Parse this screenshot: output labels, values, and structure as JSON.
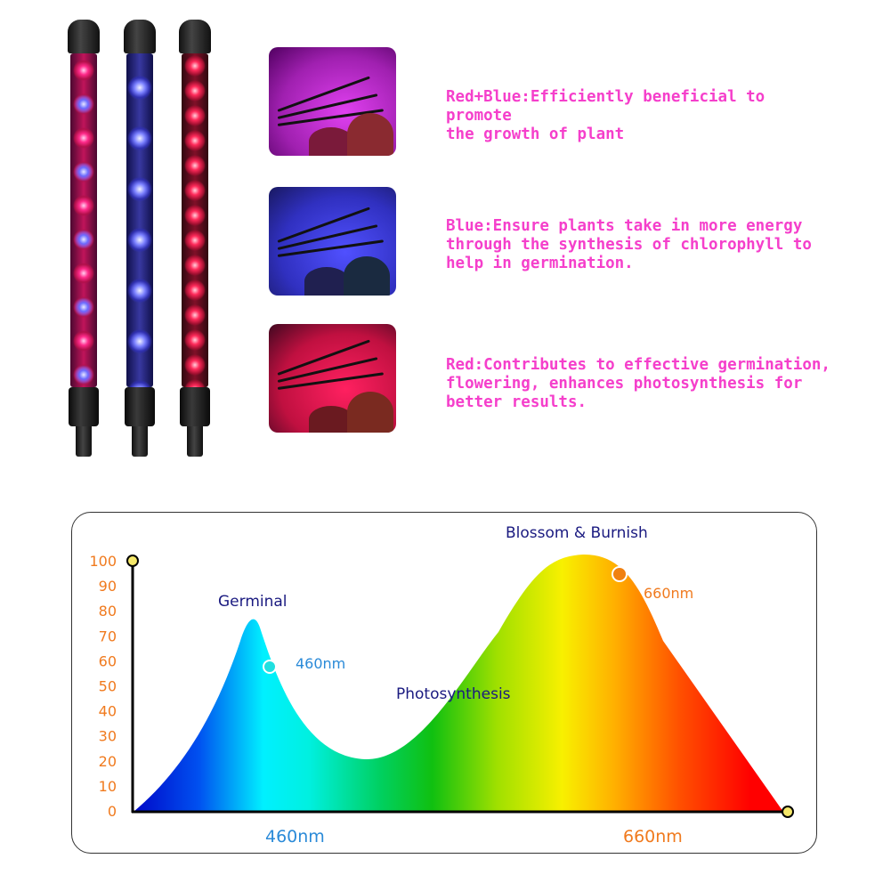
{
  "descriptions": [
    {
      "text": "Red+Blue:Efficiently beneficial to promote the growth of plant",
      "lines": [
        "Red+Blue:Efficiently beneficial to promote",
        "the growth of plant"
      ]
    },
    {
      "text": "Blue:Ensure plants take in more energy through the synthesis of chlorophyll to help in germination.",
      "lines": [
        "Blue:Ensure plants take in more energy",
        "through the synthesis of chlorophyll to",
        "help in germination."
      ]
    },
    {
      "text": "Red:Contributes to effective germination, flowering, enhances photosynthesis for better results.",
      "lines": [
        "Red:Contributes to effective germination,",
        "flowering, enhances photosynthesis for",
        "better results."
      ]
    }
  ],
  "colors": {
    "description_text": "#f53fcb",
    "axis_labels": "#f07a1e",
    "stage_labels": "#1a1a80",
    "blue_label": "#2a8ad8",
    "orange_label": "#f07a1e"
  },
  "spectrum": {
    "y_ticks": [
      "100",
      "90",
      "80",
      "70",
      "60",
      "50",
      "40",
      "30",
      "20",
      "10",
      "0"
    ],
    "x_labels": [
      "460nm",
      "660nm"
    ],
    "stages": {
      "germinal": "Germinal",
      "photosynthesis": "Photosynthesis",
      "blossom": "Blossom & Burnish"
    },
    "markers": {
      "blue": "460nm",
      "red": "660nm"
    },
    "peaks": {
      "blue_peak_value": 78,
      "trough_value": 21,
      "red_peak_value": 102
    }
  }
}
